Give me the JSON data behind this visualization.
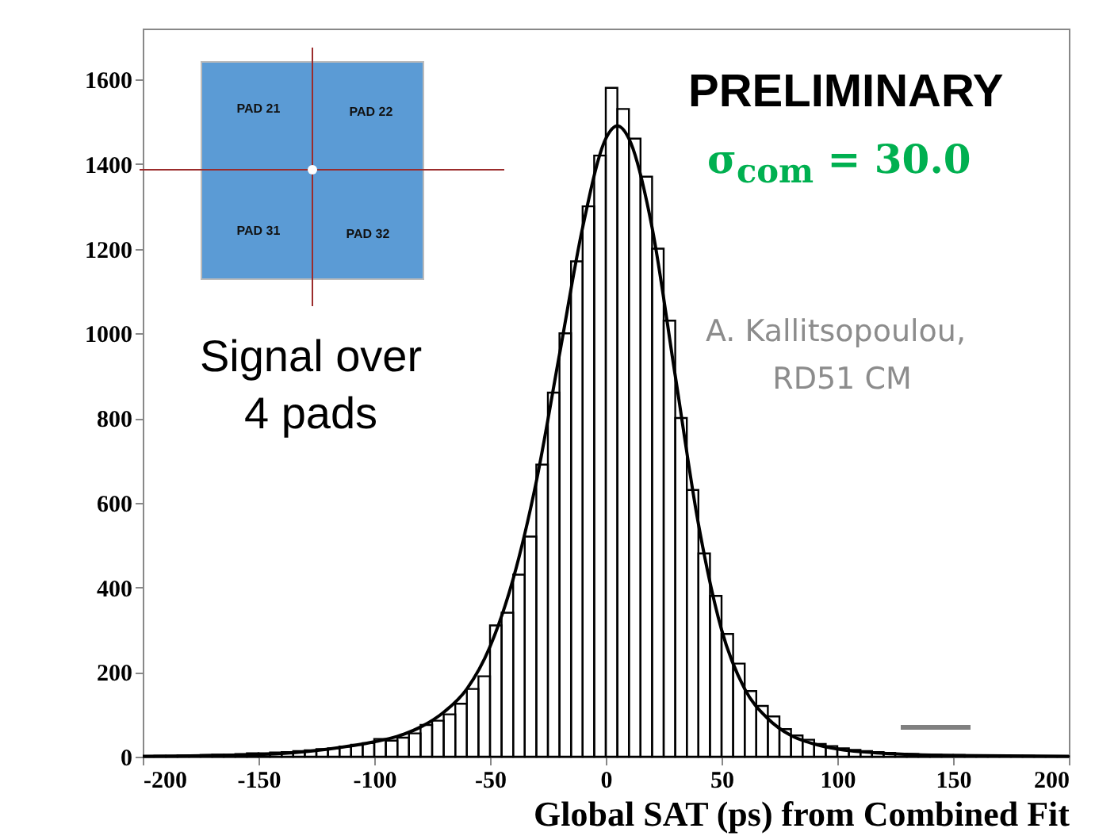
{
  "chart_data": {
    "type": "histogram",
    "xlabel": "Global SAT (ps) from Combined Fit",
    "xlim": [
      -200,
      200
    ],
    "xticks": [
      -200,
      -150,
      -100,
      -50,
      0,
      50,
      100,
      150,
      200
    ],
    "ylim": [
      0,
      1720
    ],
    "yticks": [
      0,
      200,
      400,
      600,
      800,
      1000,
      1200,
      1400,
      1600
    ],
    "grid": false,
    "series": [
      {
        "color": "#000000",
        "bins": [
          -200,
          -195,
          -190,
          -185,
          -180,
          -175,
          -170,
          -165,
          -160,
          -155,
          -150,
          -145,
          -140,
          -135,
          -130,
          -125,
          -120,
          -115,
          -110,
          -105,
          -100,
          -95,
          -90,
          -85,
          -80,
          -75,
          -70,
          -65,
          -60,
          -55,
          -50,
          -45,
          -40,
          -35,
          -30,
          -25,
          -20,
          -15,
          -10,
          -5,
          0,
          5,
          10,
          15,
          20,
          25,
          30,
          35,
          40,
          45,
          50,
          55,
          60,
          65,
          70,
          75,
          80,
          85,
          90,
          95,
          100,
          105,
          110,
          115,
          120,
          125,
          130,
          135,
          140,
          145,
          150,
          155,
          160,
          165,
          170,
          175,
          180,
          185,
          190,
          195,
          200
        ],
        "values": [
          0,
          2,
          2,
          3,
          3,
          4,
          5,
          5,
          6,
          8,
          8,
          10,
          11,
          13,
          15,
          18,
          20,
          24,
          28,
          32,
          42,
          38,
          45,
          55,
          75,
          85,
          100,
          125,
          160,
          190,
          310,
          340,
          430,
          520,
          690,
          860,
          1000,
          1170,
          1300,
          1420,
          1580,
          1530,
          1460,
          1370,
          1200,
          1030,
          800,
          630,
          480,
          380,
          290,
          220,
          155,
          120,
          95,
          65,
          50,
          40,
          30,
          25,
          20,
          16,
          13,
          11,
          9,
          7,
          6,
          5,
          5,
          4,
          4,
          3,
          3,
          3,
          2,
          2,
          2,
          1,
          1,
          1
        ]
      },
      {
        "type": "line",
        "color": "#000000",
        "x": [
          -200,
          -150,
          -120,
          -100,
          -90,
          -80,
          -70,
          -60,
          -50,
          -40,
          -30,
          -20,
          -10,
          0,
          5,
          10,
          20,
          30,
          40,
          50,
          60,
          70,
          80,
          90,
          100,
          120,
          150,
          200
        ],
        "values": [
          1,
          5,
          18,
          35,
          48,
          70,
          105,
          160,
          260,
          420,
          650,
          950,
          1250,
          1460,
          1490,
          1460,
          1250,
          900,
          550,
          300,
          160,
          90,
          50,
          30,
          18,
          8,
          3,
          1
        ]
      }
    ],
    "annotations": [
      "PRELIMINARY",
      "σ$_{com}$ = 30.0",
      "A. Kallitsopoulou,",
      "RD51 CM",
      "Signal over",
      "4 pads",
      "PAD 21",
      "PAD 22",
      "PAD 31",
      "PAD 32"
    ]
  }
}
